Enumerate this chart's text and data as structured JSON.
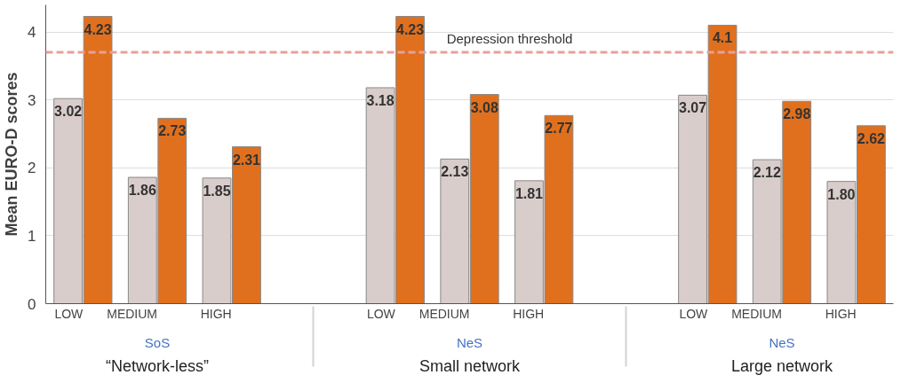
{
  "chart_data": {
    "type": "bar",
    "ylabel": "Mean EURO-D scores",
    "categories": [
      "LOW",
      "MEDIUM",
      "HIGH",
      "LOW",
      "MEDIUM",
      "HIGH",
      "LOW",
      "MEDIUM",
      "HIGH"
    ],
    "series": [
      {
        "color": "#d9cdcb",
        "values": [
          3.02,
          1.86,
          1.85,
          3.18,
          2.13,
          1.81,
          3.07,
          2.12,
          1.8
        ],
        "value_labels": [
          "3.02",
          "1.86",
          "1.85",
          "3.18",
          "2.13",
          "1.81",
          "3.07",
          "2.12",
          "1.80"
        ]
      },
      {
        "color": "#e0701e",
        "values": [
          4.23,
          2.73,
          2.31,
          4.23,
          3.08,
          2.77,
          4.1,
          2.98,
          2.62
        ],
        "value_labels": [
          "4.23",
          "2.73",
          "2.31",
          "4.23",
          "3.08",
          "2.77",
          "4.1",
          "2.98",
          "2.62"
        ]
      }
    ],
    "annotations": [
      "SoS",
      "NeS",
      "NeS",
      "“Network-less”",
      "Small network",
      "Large network"
    ],
    "ref_lines": [
      {
        "axis": "y",
        "value": 3.7,
        "label": "Depression threshold",
        "color": "#e8a09a",
        "line_style": "dashed"
      }
    ],
    "ylim": [
      0,
      4.4
    ],
    "yticks": [
      0,
      1,
      2,
      3,
      4
    ],
    "grid": "y"
  }
}
